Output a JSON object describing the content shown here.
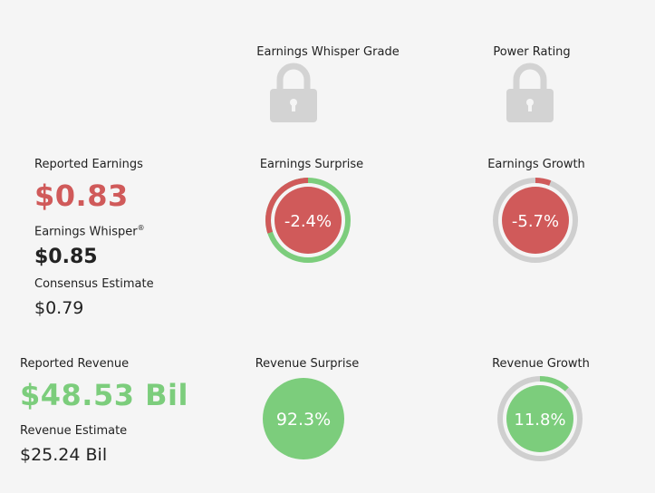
{
  "grades": {
    "whisper_grade_label": "Earnings Whisper Grade",
    "power_rating_label": "Power Rating",
    "icon": "lock-icon"
  },
  "earnings": {
    "reported_label": "Reported Earnings",
    "reported_value": "$0.83",
    "whisper_label": "Earnings Whisper",
    "whisper_mark": "®",
    "whisper_value": "$0.85",
    "consensus_label": "Consensus Estimate",
    "consensus_value": "$0.79",
    "surprise_label": "Earnings Surprise",
    "surprise_value": "-2.4%",
    "growth_label": "Earnings Growth",
    "growth_value": "-5.7%"
  },
  "revenue": {
    "reported_label": "Reported Revenue",
    "reported_value": "$48.53 Bil",
    "estimate_label": "Revenue Estimate",
    "estimate_value": "$25.24 Bil",
    "surprise_label": "Revenue Surprise",
    "surprise_value": "92.3%",
    "growth_label": "Revenue Growth",
    "growth_value": "11.8%"
  },
  "gauges": {
    "earnings_surprise": {
      "value_pct": -2.4
    },
    "earnings_growth": {
      "value_pct": -5.7
    },
    "revenue_surprise": {
      "value_pct": 92.3
    },
    "revenue_growth": {
      "value_pct": 11.8
    }
  },
  "colors": {
    "negative": "#d05a5a",
    "positive": "#7ccd7c",
    "ring_gray": "#cfcfcf",
    "lock_gray": "#d3d3d3"
  }
}
